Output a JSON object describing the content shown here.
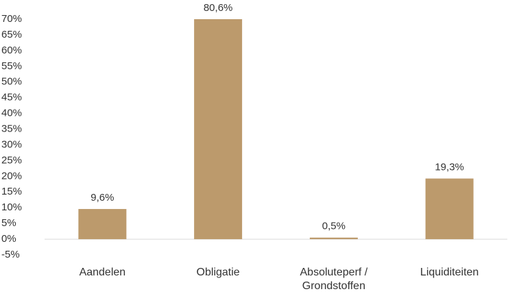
{
  "chart_data": {
    "type": "bar",
    "categories": [
      "Aandelen",
      "Obligatie",
      "Absoluteperf / Grondstoffen",
      "Liquiditeiten"
    ],
    "values": [
      9.6,
      80.6,
      0.5,
      19.3
    ],
    "value_labels": [
      "9,6%",
      "80,6%",
      "0,5%",
      "19,3%"
    ],
    "color": "#bc9a6c",
    "ylim": [
      -5,
      70
    ],
    "yticks": [
      {
        "value": -5,
        "label": "-5%"
      },
      {
        "value": 0,
        "label": "0%"
      },
      {
        "value": 5,
        "label": "5%"
      },
      {
        "value": 10,
        "label": "10%"
      },
      {
        "value": 15,
        "label": "15%"
      },
      {
        "value": 20,
        "label": "20%"
      },
      {
        "value": 25,
        "label": "25%"
      },
      {
        "value": 30,
        "label": "30%"
      },
      {
        "value": 35,
        "label": "35%"
      },
      {
        "value": 40,
        "label": "40%"
      },
      {
        "value": 45,
        "label": "45%"
      },
      {
        "value": 50,
        "label": "50%"
      },
      {
        "value": 55,
        "label": "55%"
      },
      {
        "value": 60,
        "label": "60%"
      },
      {
        "value": 65,
        "label": "65%"
      },
      {
        "value": 70,
        "label": "70%"
      }
    ],
    "grid": false
  }
}
